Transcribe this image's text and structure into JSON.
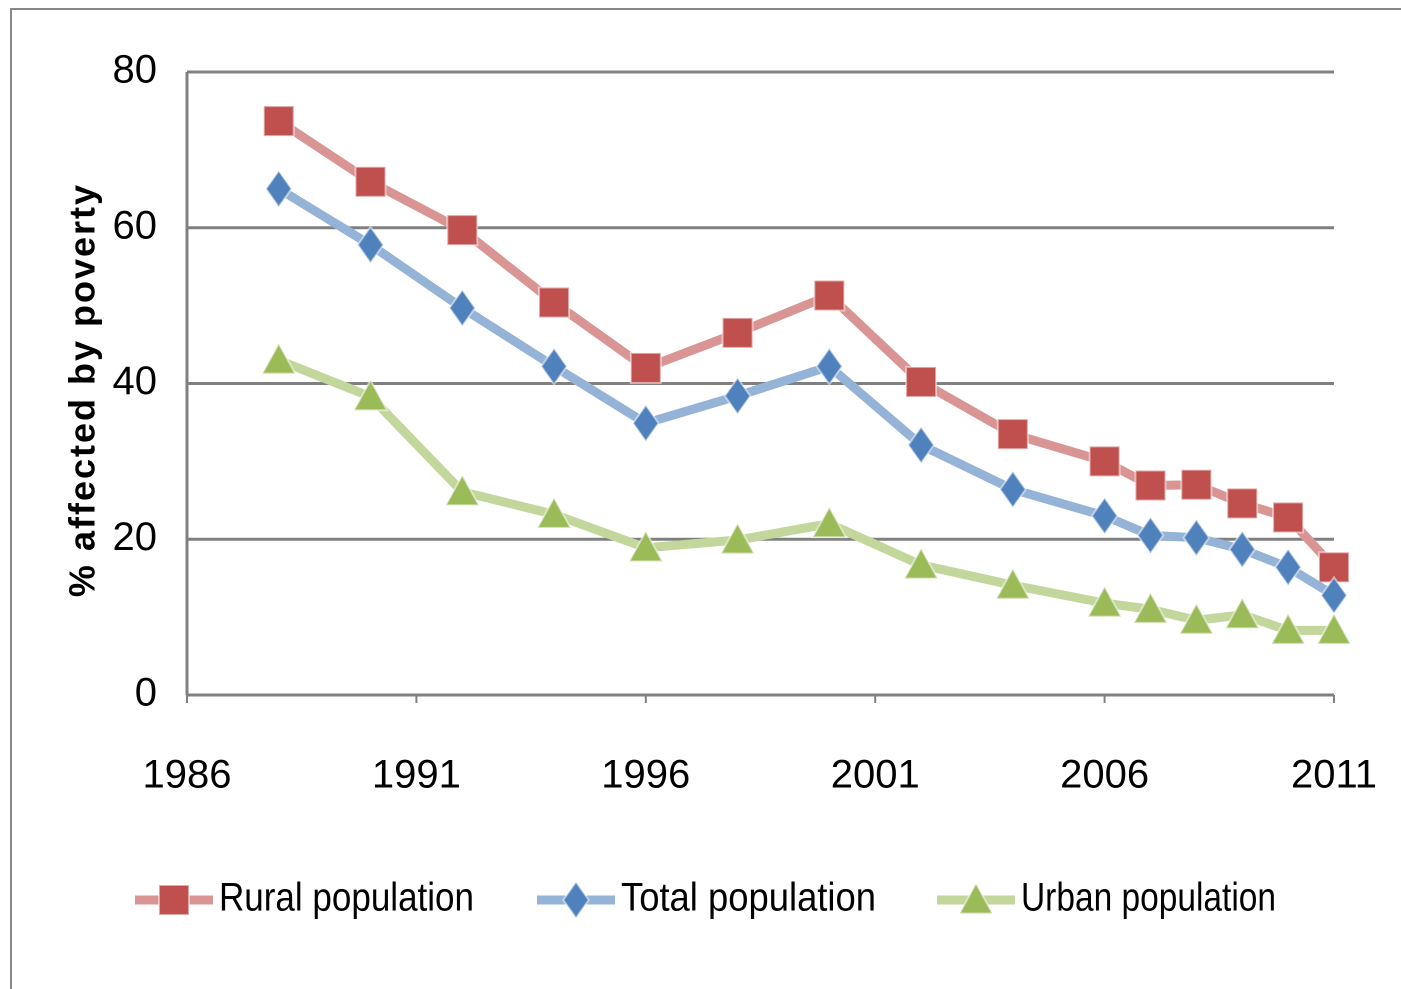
{
  "chart_data": {
    "type": "line",
    "y_label": "% affected by poverty",
    "x": [
      1988,
      1990,
      1992,
      1994,
      1996,
      1998,
      2000,
      2002,
      2004,
      2006,
      2007,
      2008,
      2009,
      2010,
      2011
    ],
    "series": [
      {
        "name": "Rural population",
        "color": "#d99594",
        "marker_color": "#c0504d",
        "marker": "square",
        "values": [
          73.7,
          65.9,
          59.7,
          50.4,
          42.0,
          46.5,
          51.3,
          40.2,
          33.5,
          30.0,
          26.9,
          27.0,
          24.6,
          22.8,
          16.4
        ]
      },
      {
        "name": "Total population",
        "color": "#95b3d7",
        "marker_color": "#4f81bd",
        "marker": "diamond",
        "values": [
          65.0,
          57.8,
          49.7,
          42.2,
          34.9,
          38.4,
          42.2,
          32.1,
          26.4,
          23.0,
          20.5,
          20.2,
          18.7,
          16.4,
          12.8
        ]
      },
      {
        "name": "Urban population",
        "color": "#c3d69b",
        "marker_color": "#9bbb59",
        "marker": "triangle",
        "values": [
          43.0,
          38.3,
          26.1,
          23.2,
          18.9,
          19.9,
          22.0,
          16.7,
          14.1,
          11.8,
          11.0,
          9.6,
          10.3,
          8.3,
          8.3
        ]
      }
    ],
    "xlim": [
      1986,
      2011
    ],
    "xticks": [
      1986,
      1991,
      1996,
      2001,
      2006,
      2011
    ],
    "ylim": [
      0,
      80
    ],
    "yticks": [
      0,
      20,
      40,
      60,
      80
    ],
    "grid": true,
    "legend": "bottom"
  }
}
